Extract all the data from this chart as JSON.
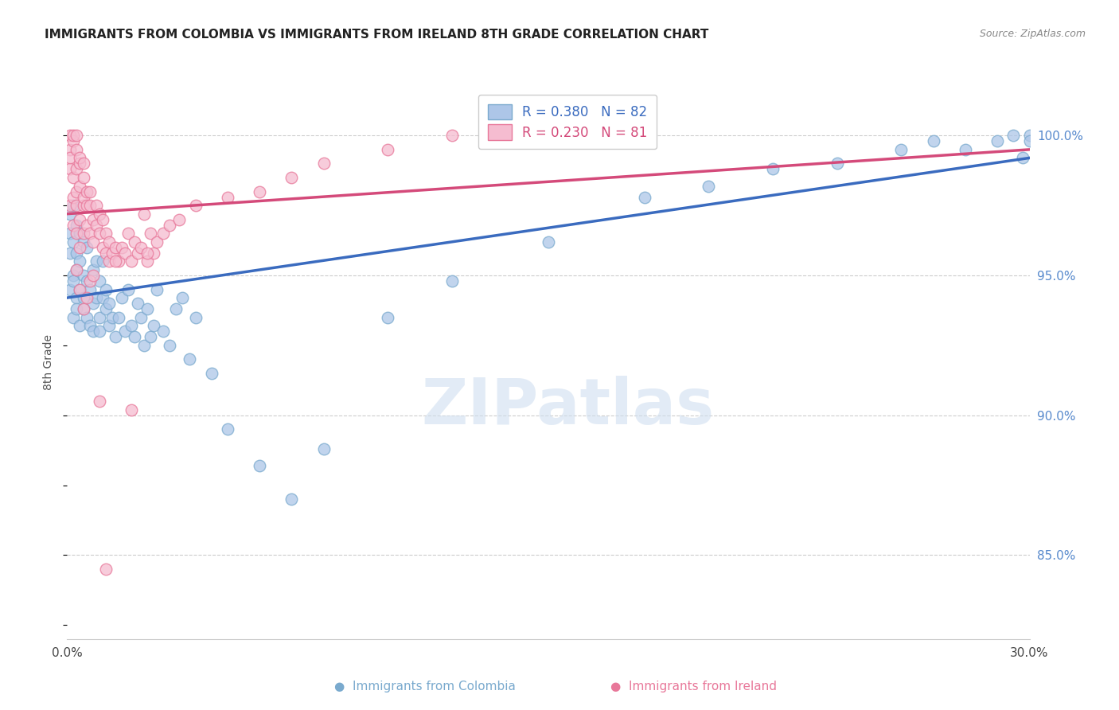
{
  "title": "IMMIGRANTS FROM COLOMBIA VS IMMIGRANTS FROM IRELAND 8TH GRADE CORRELATION CHART",
  "source": "Source: ZipAtlas.com",
  "ylabel": "8th Grade",
  "y_ticks": [
    85.0,
    90.0,
    95.0,
    100.0
  ],
  "y_tick_labels": [
    "85.0%",
    "90.0%",
    "95.0%",
    "100.0%"
  ],
  "xmin": 0.0,
  "xmax": 0.3,
  "ymin": 82.0,
  "ymax": 101.8,
  "colombia_color": "#adc6e8",
  "colombia_edge": "#7aaace",
  "ireland_color": "#f5bcd0",
  "ireland_edge": "#e8789a",
  "colombia_line_color": "#3a6bbf",
  "ireland_line_color": "#d44a7a",
  "legend_r_colombia": "R = 0.380",
  "legend_n_colombia": "N = 82",
  "legend_r_ireland": "R = 0.230",
  "legend_n_ireland": "N = 81",
  "watermark": "ZIPatlas",
  "colombia_x": [
    0.001,
    0.001,
    0.001,
    0.001,
    0.002,
    0.002,
    0.002,
    0.002,
    0.002,
    0.003,
    0.003,
    0.003,
    0.003,
    0.003,
    0.004,
    0.004,
    0.004,
    0.004,
    0.005,
    0.005,
    0.005,
    0.005,
    0.006,
    0.006,
    0.006,
    0.007,
    0.007,
    0.008,
    0.008,
    0.008,
    0.009,
    0.009,
    0.01,
    0.01,
    0.01,
    0.011,
    0.011,
    0.012,
    0.012,
    0.013,
    0.013,
    0.014,
    0.015,
    0.016,
    0.017,
    0.018,
    0.019,
    0.02,
    0.021,
    0.022,
    0.023,
    0.024,
    0.025,
    0.026,
    0.027,
    0.028,
    0.03,
    0.032,
    0.034,
    0.036,
    0.038,
    0.04,
    0.045,
    0.05,
    0.06,
    0.07,
    0.08,
    0.1,
    0.12,
    0.15,
    0.18,
    0.2,
    0.22,
    0.24,
    0.26,
    0.27,
    0.28,
    0.29,
    0.295,
    0.298,
    0.3,
    0.3
  ],
  "colombia_y": [
    96.5,
    95.8,
    97.2,
    94.5,
    95.0,
    96.2,
    97.5,
    94.8,
    93.5,
    94.2,
    95.8,
    96.8,
    93.8,
    95.2,
    94.5,
    95.5,
    96.5,
    93.2,
    93.8,
    95.0,
    96.2,
    94.2,
    93.5,
    94.8,
    96.0,
    93.2,
    94.5,
    94.0,
    95.2,
    93.0,
    94.2,
    95.5,
    93.5,
    94.8,
    93.0,
    94.2,
    95.5,
    93.8,
    94.5,
    94.0,
    93.2,
    93.5,
    92.8,
    93.5,
    94.2,
    93.0,
    94.5,
    93.2,
    92.8,
    94.0,
    93.5,
    92.5,
    93.8,
    92.8,
    93.2,
    94.5,
    93.0,
    92.5,
    93.8,
    94.2,
    92.0,
    93.5,
    91.5,
    89.5,
    88.2,
    87.0,
    88.8,
    93.5,
    94.8,
    96.2,
    97.8,
    98.2,
    98.8,
    99.0,
    99.5,
    99.8,
    99.5,
    99.8,
    100.0,
    99.2,
    100.0,
    99.8
  ],
  "ireland_x": [
    0.001,
    0.001,
    0.001,
    0.001,
    0.001,
    0.002,
    0.002,
    0.002,
    0.002,
    0.002,
    0.003,
    0.003,
    0.003,
    0.003,
    0.003,
    0.003,
    0.004,
    0.004,
    0.004,
    0.004,
    0.004,
    0.005,
    0.005,
    0.005,
    0.005,
    0.005,
    0.006,
    0.006,
    0.006,
    0.007,
    0.007,
    0.007,
    0.008,
    0.008,
    0.009,
    0.009,
    0.01,
    0.01,
    0.011,
    0.011,
    0.012,
    0.012,
    0.013,
    0.013,
    0.014,
    0.015,
    0.016,
    0.017,
    0.018,
    0.019,
    0.02,
    0.021,
    0.022,
    0.023,
    0.024,
    0.025,
    0.026,
    0.027,
    0.028,
    0.03,
    0.032,
    0.035,
    0.04,
    0.05,
    0.06,
    0.07,
    0.08,
    0.1,
    0.12,
    0.14,
    0.003,
    0.004,
    0.005,
    0.006,
    0.007,
    0.008,
    0.01,
    0.012,
    0.015,
    0.02,
    0.025
  ],
  "ireland_y": [
    99.5,
    100.0,
    98.8,
    99.2,
    97.5,
    99.8,
    100.0,
    98.5,
    97.8,
    96.8,
    99.5,
    100.0,
    98.8,
    97.5,
    96.5,
    98.0,
    99.0,
    98.2,
    97.0,
    96.0,
    99.2,
    98.5,
    97.5,
    96.5,
    99.0,
    97.8,
    98.0,
    96.8,
    97.5,
    97.5,
    96.5,
    98.0,
    97.0,
    96.2,
    96.8,
    97.5,
    96.5,
    97.2,
    96.0,
    97.0,
    95.8,
    96.5,
    95.5,
    96.2,
    95.8,
    96.0,
    95.5,
    96.0,
    95.8,
    96.5,
    95.5,
    96.2,
    95.8,
    96.0,
    97.2,
    95.5,
    96.5,
    95.8,
    96.2,
    96.5,
    96.8,
    97.0,
    97.5,
    97.8,
    98.0,
    98.5,
    99.0,
    99.5,
    100.0,
    100.0,
    95.2,
    94.5,
    93.8,
    94.2,
    94.8,
    95.0,
    90.5,
    84.5,
    95.5,
    90.2,
    95.8
  ]
}
